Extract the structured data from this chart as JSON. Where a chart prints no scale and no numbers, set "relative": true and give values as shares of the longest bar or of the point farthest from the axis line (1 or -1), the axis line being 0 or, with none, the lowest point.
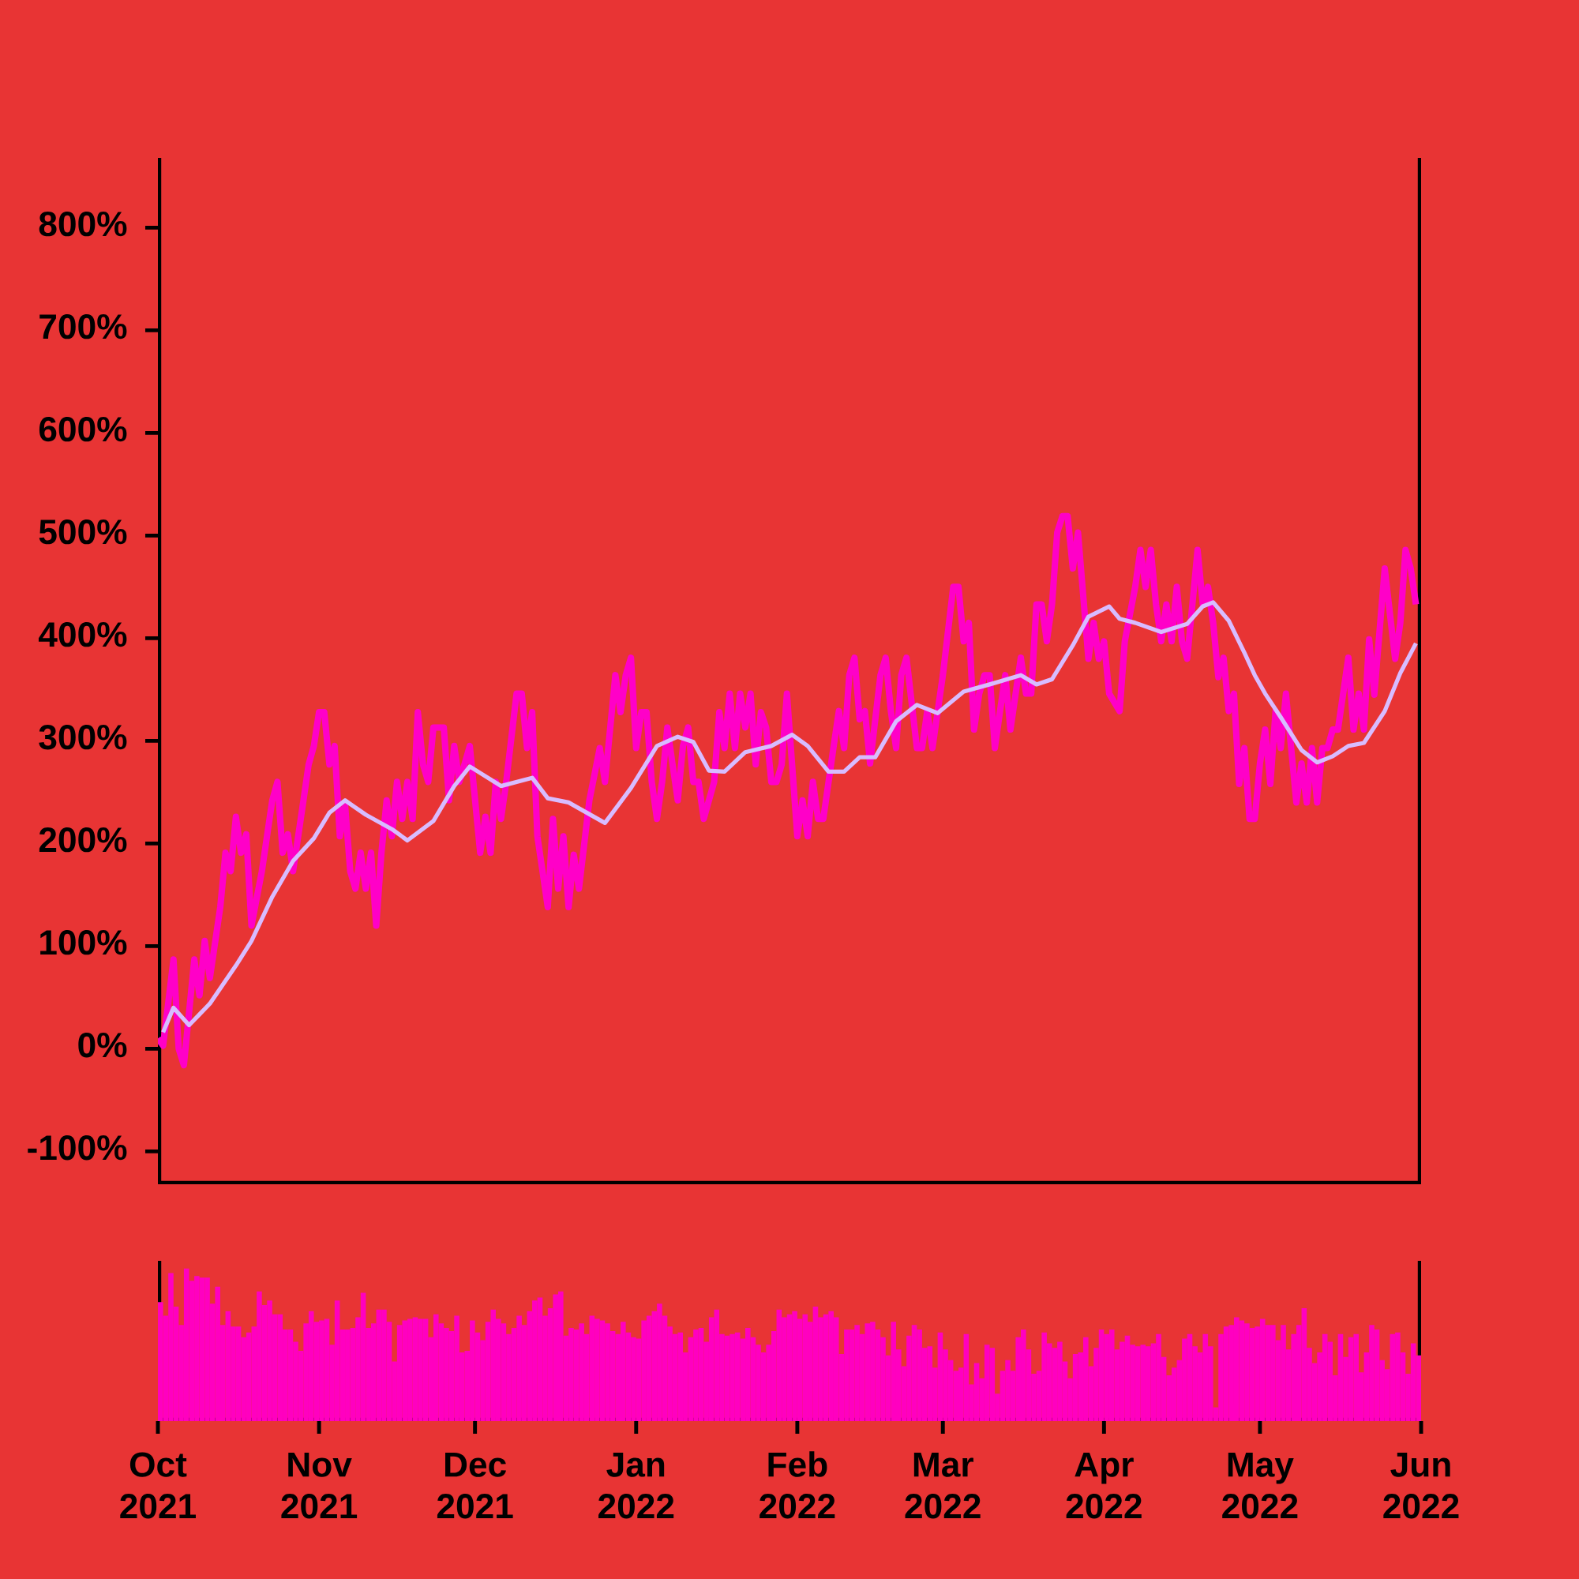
{
  "chart_data": [
    {
      "type": "line",
      "xlim": [
        "2021-10-01",
        "2022-06-01"
      ],
      "ylim": [
        -132,
        868
      ],
      "tick_labels": "y",
      "yticks": [
        {
          "value": -100,
          "label": "-100%"
        },
        {
          "value": 0,
          "label": "0%"
        },
        {
          "value": 100,
          "label": "100%"
        },
        {
          "value": 200,
          "label": "200%"
        },
        {
          "value": 300,
          "label": "300%"
        },
        {
          "value": 400,
          "label": "400%"
        },
        {
          "value": 500,
          "label": "500%"
        },
        {
          "value": 600,
          "label": "600%"
        },
        {
          "value": 700,
          "label": "700%"
        },
        {
          "value": 800,
          "label": "800%"
        }
      ],
      "series": [
        {
          "color": "#ff00c8",
          "x": [
            "2021-10-01",
            "2021-10-02",
            "2021-10-04",
            "2021-10-05",
            "2021-10-06",
            "2021-10-08",
            "2021-10-09",
            "2021-10-10",
            "2021-10-11",
            "2021-10-13",
            "2021-10-14",
            "2021-10-15",
            "2021-10-16",
            "2021-10-17",
            "2021-10-18",
            "2021-10-19",
            "2021-10-21",
            "2021-10-23",
            "2021-10-24",
            "2021-10-25",
            "2021-10-26",
            "2021-10-27",
            "2021-10-29",
            "2021-10-30",
            "2021-10-31",
            "2021-11-01",
            "2021-11-02",
            "2021-11-03",
            "2021-11-04",
            "2021-11-05",
            "2021-11-06",
            "2021-11-07",
            "2021-11-08",
            "2021-11-09",
            "2021-11-10",
            "2021-11-11",
            "2021-11-12",
            "2021-11-13",
            "2021-11-14",
            "2021-11-15",
            "2021-11-16",
            "2021-11-17",
            "2021-11-18",
            "2021-11-19",
            "2021-11-20",
            "2021-11-21",
            "2021-11-22",
            "2021-11-23",
            "2021-11-25",
            "2021-11-26",
            "2021-11-27",
            "2021-11-28",
            "2021-11-30",
            "2021-12-02",
            "2021-12-03",
            "2021-12-04",
            "2021-12-05",
            "2021-12-06",
            "2021-12-07",
            "2021-12-09",
            "2021-12-10",
            "2021-12-11",
            "2021-12-12",
            "2021-12-13",
            "2021-12-15",
            "2021-12-16",
            "2021-12-17",
            "2021-12-18",
            "2021-12-19",
            "2021-12-20",
            "2021-12-21",
            "2021-12-23",
            "2021-12-25",
            "2021-12-26",
            "2021-12-28",
            "2021-12-29",
            "2021-12-30",
            "2021-12-31",
            "2022-01-01",
            "2022-01-02",
            "2022-01-03",
            "2022-01-04",
            "2022-01-05",
            "2022-01-06",
            "2022-01-07",
            "2022-01-08",
            "2022-01-09",
            "2022-01-10",
            "2022-01-11",
            "2022-01-12",
            "2022-01-13",
            "2022-01-14",
            "2022-01-16",
            "2022-01-17",
            "2022-01-18",
            "2022-01-19",
            "2022-01-20",
            "2022-01-21",
            "2022-01-22",
            "2022-01-23",
            "2022-01-24",
            "2022-01-25",
            "2022-01-26",
            "2022-01-27",
            "2022-01-28",
            "2022-01-29",
            "2022-01-30",
            "2022-02-01",
            "2022-02-02",
            "2022-02-03",
            "2022-02-04",
            "2022-02-05",
            "2022-02-06",
            "2022-02-08",
            "2022-02-09",
            "2022-02-10",
            "2022-02-11",
            "2022-02-12",
            "2022-02-13",
            "2022-02-14",
            "2022-02-15",
            "2022-02-17",
            "2022-02-18",
            "2022-02-19",
            "2022-02-20",
            "2022-02-21",
            "2022-02-22",
            "2022-02-24",
            "2022-02-25",
            "2022-02-26",
            "2022-02-27",
            "2022-03-01",
            "2022-03-03",
            "2022-03-04",
            "2022-03-05",
            "2022-03-06",
            "2022-03-07",
            "2022-03-08",
            "2022-03-09",
            "2022-03-10",
            "2022-03-11",
            "2022-03-12",
            "2022-03-13",
            "2022-03-14",
            "2022-03-16",
            "2022-03-17",
            "2022-03-18",
            "2022-03-19",
            "2022-03-20",
            "2022-03-21",
            "2022-03-22",
            "2022-03-23",
            "2022-03-24",
            "2022-03-25",
            "2022-03-26",
            "2022-03-27",
            "2022-03-29",
            "2022-03-30",
            "2022-03-31",
            "2022-04-01",
            "2022-04-02",
            "2022-04-04",
            "2022-04-05",
            "2022-04-07",
            "2022-04-08",
            "2022-04-09",
            "2022-04-10",
            "2022-04-11",
            "2022-04-12",
            "2022-04-13",
            "2022-04-14",
            "2022-04-15",
            "2022-04-16",
            "2022-04-17",
            "2022-04-19",
            "2022-04-20",
            "2022-04-21",
            "2022-04-22",
            "2022-04-23",
            "2022-04-24",
            "2022-04-25",
            "2022-04-26",
            "2022-04-27",
            "2022-04-28",
            "2022-04-29",
            "2022-04-30",
            "2022-05-01",
            "2022-05-02",
            "2022-05-03",
            "2022-05-04",
            "2022-05-05",
            "2022-05-06",
            "2022-05-08",
            "2022-05-09",
            "2022-05-10",
            "2022-05-11",
            "2022-05-12",
            "2022-05-13",
            "2022-05-14",
            "2022-05-15",
            "2022-05-16",
            "2022-05-18",
            "2022-05-19",
            "2022-05-20",
            "2022-05-21",
            "2022-05-22",
            "2022-05-23",
            "2022-05-25",
            "2022-05-27",
            "2022-05-28",
            "2022-05-29",
            "2022-05-30",
            "2022-05-31"
          ],
          "values": [
            10,
            3,
            87,
            0,
            -16,
            87,
            52,
            105,
            69,
            138,
            191,
            173,
            226,
            191,
            209,
            120,
            173,
            242,
            260,
            191,
            209,
            173,
            242,
            277,
            295,
            328,
            328,
            277,
            295,
            207,
            238,
            173,
            156,
            191,
            156,
            191,
            120,
            191,
            242,
            207,
            260,
            224,
            260,
            224,
            328,
            277,
            260,
            313,
            313,
            242,
            295,
            260,
            295,
            191,
            226,
            191,
            260,
            224,
            260,
            346,
            346,
            293,
            328,
            207,
            138,
            224,
            156,
            207,
            138,
            189,
            156,
            242,
            293,
            260,
            364,
            328,
            364,
            381,
            293,
            328,
            328,
            260,
            224,
            260,
            313,
            277,
            242,
            295,
            313,
            260,
            260,
            224,
            260,
            328,
            293,
            346,
            293,
            346,
            313,
            346,
            277,
            328,
            313,
            260,
            260,
            277,
            346,
            207,
            242,
            207,
            260,
            224,
            224,
            295,
            329,
            293,
            364,
            381,
            321,
            329,
            278,
            364,
            381,
            329,
            293,
            364,
            381,
            293,
            293,
            329,
            293,
            364,
            450,
            450,
            397,
            415,
            311,
            346,
            364,
            364,
            293,
            329,
            364,
            311,
            381,
            346,
            346,
            433,
            433,
            397,
            433,
            503,
            519,
            519,
            468,
            503,
            380,
            415,
            380,
            397,
            346,
            329,
            397,
            450,
            486,
            450,
            486,
            433,
            397,
            433,
            397,
            450,
            397,
            380,
            486,
            433,
            450,
            415,
            362,
            381,
            329,
            346,
            258,
            293,
            224,
            224,
            278,
            311,
            258,
            329,
            293,
            346,
            240,
            278,
            240,
            293,
            240,
            293,
            293,
            311,
            311,
            381,
            311,
            346,
            311,
            399,
            345,
            468,
            380,
            415,
            486,
            468,
            433
          ]
        },
        {
          "color": "#d8bcff",
          "x": [
            "2021-10-02",
            "2021-10-04",
            "2021-10-07",
            "2021-10-11",
            "2021-10-16",
            "2021-10-19",
            "2021-10-23",
            "2021-10-27",
            "2021-10-31",
            "2021-11-03",
            "2021-11-06",
            "2021-11-10",
            "2021-11-15",
            "2021-11-18",
            "2021-11-23",
            "2021-11-27",
            "2021-11-30",
            "2021-12-06",
            "2021-12-12",
            "2021-12-15",
            "2021-12-19",
            "2021-12-26",
            "2021-12-31",
            "2022-01-05",
            "2022-01-09",
            "2022-01-12",
            "2022-01-15",
            "2022-01-18",
            "2022-01-22",
            "2022-01-27",
            "2022-01-31",
            "2022-02-03",
            "2022-02-07",
            "2022-02-10",
            "2022-02-13",
            "2022-02-16",
            "2022-02-20",
            "2022-02-24",
            "2022-02-28",
            "2022-03-05",
            "2022-03-10",
            "2022-03-16",
            "2022-03-19",
            "2022-03-22",
            "2022-03-26",
            "2022-03-29",
            "2022-04-02",
            "2022-04-04",
            "2022-04-07",
            "2022-04-12",
            "2022-04-17",
            "2022-04-20",
            "2022-04-22",
            "2022-04-25",
            "2022-04-28",
            "2022-04-30",
            "2022-05-02",
            "2022-05-05",
            "2022-05-09",
            "2022-05-12",
            "2022-05-15",
            "2022-05-18",
            "2022-05-21",
            "2022-05-25",
            "2022-05-28",
            "2022-05-31"
          ],
          "values": [
            16,
            40,
            23,
            44,
            81,
            105,
            148,
            183,
            205,
            230,
            242,
            228,
            214,
            203,
            222,
            256,
            275,
            256,
            264,
            244,
            240,
            220,
            254,
            295,
            304,
            299,
            271,
            270,
            289,
            295,
            306,
            295,
            270,
            270,
            284,
            284,
            319,
            335,
            327,
            348,
            355,
            364,
            355,
            360,
            393,
            421,
            431,
            419,
            415,
            406,
            414,
            431,
            435,
            417,
            386,
            364,
            346,
            323,
            291,
            279,
            285,
            295,
            298,
            329,
            366,
            395
          ]
        }
      ]
    },
    {
      "type": "bar",
      "relative": true,
      "color": "#ff00c0",
      "xlim": [
        "2021-10-01",
        "2022-06-01"
      ],
      "tick_labels": "x",
      "xticks": [
        {
          "value": "2021-10-01",
          "label": "Oct 2021"
        },
        {
          "value": "2021-11-01",
          "label": "Nov 2021"
        },
        {
          "value": "2021-12-01",
          "label": "Dec 2021"
        },
        {
          "value": "2022-01-01",
          "label": "Jan 2022"
        },
        {
          "value": "2022-02-01",
          "label": "Feb 2022"
        },
        {
          "value": "2022-03-01",
          "label": "Mar 2022"
        },
        {
          "value": "2022-04-01",
          "label": "Apr 2022"
        },
        {
          "value": "2022-05-01",
          "label": "May 2022"
        },
        {
          "value": "2022-06-01",
          "label": "Jun 2022"
        }
      ],
      "x": [
        "2021-10-01",
        "2021-10-02",
        "2021-10-03",
        "2021-10-04",
        "2021-10-05",
        "2021-10-06",
        "2021-10-07",
        "2021-10-08",
        "2021-10-09",
        "2021-10-10",
        "2021-10-11",
        "2021-10-12",
        "2021-10-13",
        "2021-10-14",
        "2021-10-15",
        "2021-10-16",
        "2021-10-17",
        "2021-10-18",
        "2021-10-19",
        "2021-10-20",
        "2021-10-21",
        "2021-10-22",
        "2021-10-23",
        "2021-10-24",
        "2021-10-25",
        "2021-10-26",
        "2021-10-27",
        "2021-10-28",
        "2021-10-29",
        "2021-10-30",
        "2021-10-31",
        "2021-11-01",
        "2021-11-02",
        "2021-11-03",
        "2021-11-04",
        "2021-11-05",
        "2021-11-06",
        "2021-11-07",
        "2021-11-08",
        "2021-11-09",
        "2021-11-10",
        "2021-11-11",
        "2021-11-12",
        "2021-11-13",
        "2021-11-14",
        "2021-11-15",
        "2021-11-16",
        "2021-11-17",
        "2021-11-18",
        "2021-11-19",
        "2021-11-20",
        "2021-11-21",
        "2021-11-22",
        "2021-11-23",
        "2021-11-24",
        "2021-11-25",
        "2021-11-26",
        "2021-11-27",
        "2021-11-28",
        "2021-11-29",
        "2021-11-30",
        "2021-12-01",
        "2021-12-02",
        "2021-12-03",
        "2021-12-04",
        "2021-12-05",
        "2021-12-06",
        "2021-12-07",
        "2021-12-08",
        "2021-12-09",
        "2021-12-10",
        "2021-12-11",
        "2021-12-12",
        "2021-12-13",
        "2021-12-14",
        "2021-12-15",
        "2021-12-16",
        "2021-12-17",
        "2021-12-18",
        "2021-12-19",
        "2021-12-20",
        "2021-12-21",
        "2021-12-22",
        "2021-12-23",
        "2021-12-24",
        "2021-12-25",
        "2021-12-26",
        "2021-12-27",
        "2021-12-28",
        "2021-12-29",
        "2021-12-30",
        "2021-12-31",
        "2022-01-01",
        "2022-01-02",
        "2022-01-03",
        "2022-01-04",
        "2022-01-05",
        "2022-01-06",
        "2022-01-07",
        "2022-01-08",
        "2022-01-09",
        "2022-01-10",
        "2022-01-11",
        "2022-01-12",
        "2022-01-13",
        "2022-01-14",
        "2022-01-15",
        "2022-01-16",
        "2022-01-17",
        "2022-01-18",
        "2022-01-19",
        "2022-01-20",
        "2022-01-21",
        "2022-01-22",
        "2022-01-23",
        "2022-01-24",
        "2022-01-25",
        "2022-01-26",
        "2022-01-27",
        "2022-01-28",
        "2022-01-29",
        "2022-01-30",
        "2022-01-31",
        "2022-02-01",
        "2022-02-02",
        "2022-02-03",
        "2022-02-04",
        "2022-02-05",
        "2022-02-06",
        "2022-02-07",
        "2022-02-08",
        "2022-02-09",
        "2022-02-10",
        "2022-02-11",
        "2022-02-12",
        "2022-02-13",
        "2022-02-14",
        "2022-02-15",
        "2022-02-16",
        "2022-02-17",
        "2022-02-18",
        "2022-02-19",
        "2022-02-20",
        "2022-02-21",
        "2022-02-22",
        "2022-02-23",
        "2022-02-24",
        "2022-02-25",
        "2022-02-26",
        "2022-02-27",
        "2022-02-28",
        "2022-03-01",
        "2022-03-02",
        "2022-03-03",
        "2022-03-04",
        "2022-03-05",
        "2022-03-06",
        "2022-03-07",
        "2022-03-08",
        "2022-03-09",
        "2022-03-10",
        "2022-03-11",
        "2022-03-12",
        "2022-03-13",
        "2022-03-14",
        "2022-03-15",
        "2022-03-16",
        "2022-03-17",
        "2022-03-18",
        "2022-03-19",
        "2022-03-20",
        "2022-03-21",
        "2022-03-22",
        "2022-03-23",
        "2022-03-24",
        "2022-03-25",
        "2022-03-26",
        "2022-03-27",
        "2022-03-28",
        "2022-03-29",
        "2022-03-30",
        "2022-03-31",
        "2022-04-01",
        "2022-04-02",
        "2022-04-03",
        "2022-04-04",
        "2022-04-05",
        "2022-04-06",
        "2022-04-07",
        "2022-04-08",
        "2022-04-09",
        "2022-04-10",
        "2022-04-11",
        "2022-04-12",
        "2022-04-13",
        "2022-04-14",
        "2022-04-15",
        "2022-04-16",
        "2022-04-17",
        "2022-04-18",
        "2022-04-19",
        "2022-04-20",
        "2022-04-21",
        "2022-04-22",
        "2022-04-23",
        "2022-04-24",
        "2022-04-25",
        "2022-04-26",
        "2022-04-27",
        "2022-04-28",
        "2022-04-29",
        "2022-04-30",
        "2022-05-01",
        "2022-05-02",
        "2022-05-03",
        "2022-05-04",
        "2022-05-05",
        "2022-05-06",
        "2022-05-07",
        "2022-05-08",
        "2022-05-09",
        "2022-05-10",
        "2022-05-11",
        "2022-05-12",
        "2022-05-13",
        "2022-05-14",
        "2022-05-15",
        "2022-05-16",
        "2022-05-17",
        "2022-05-18",
        "2022-05-19",
        "2022-05-20",
        "2022-05-21",
        "2022-05-22",
        "2022-05-23",
        "2022-05-24",
        "2022-05-25",
        "2022-05-26",
        "2022-05-27",
        "2022-05-28",
        "2022-05-29",
        "2022-05-30",
        "2022-05-31"
      ],
      "values": [
        0.78,
        0.69,
        0.97,
        0.75,
        0.63,
        1.0,
        0.92,
        0.95,
        0.94,
        0.94,
        0.77,
        0.88,
        0.63,
        0.72,
        0.62,
        0.62,
        0.55,
        0.58,
        0.62,
        0.85,
        0.76,
        0.79,
        0.7,
        0.7,
        0.6,
        0.6,
        0.52,
        0.46,
        0.64,
        0.72,
        0.65,
        0.66,
        0.67,
        0.5,
        0.79,
        0.6,
        0.6,
        0.61,
        0.68,
        0.84,
        0.61,
        0.64,
        0.73,
        0.73,
        0.65,
        0.39,
        0.63,
        0.66,
        0.67,
        0.68,
        0.67,
        0.67,
        0.55,
        0.7,
        0.64,
        0.61,
        0.59,
        0.69,
        0.45,
        0.46,
        0.66,
        0.58,
        0.53,
        0.65,
        0.73,
        0.67,
        0.64,
        0.57,
        0.61,
        0.69,
        0.63,
        0.72,
        0.79,
        0.81,
        0.69,
        0.74,
        0.83,
        0.85,
        0.56,
        0.61,
        0.6,
        0.64,
        0.57,
        0.69,
        0.67,
        0.66,
        0.64,
        0.59,
        0.57,
        0.65,
        0.58,
        0.55,
        0.54,
        0.66,
        0.69,
        0.72,
        0.77,
        0.69,
        0.62,
        0.57,
        0.58,
        0.45,
        0.55,
        0.6,
        0.61,
        0.52,
        0.68,
        0.73,
        0.57,
        0.56,
        0.57,
        0.58,
        0.54,
        0.61,
        0.55,
        0.5,
        0.45,
        0.5,
        0.59,
        0.73,
        0.68,
        0.7,
        0.72,
        0.67,
        0.7,
        0.65,
        0.75,
        0.68,
        0.7,
        0.72,
        0.68,
        0.44,
        0.6,
        0.6,
        0.63,
        0.57,
        0.64,
        0.65,
        0.6,
        0.55,
        0.43,
        0.65,
        0.47,
        0.36,
        0.56,
        0.63,
        0.6,
        0.48,
        0.49,
        0.35,
        0.58,
        0.47,
        0.4,
        0.33,
        0.35,
        0.57,
        0.24,
        0.38,
        0.28,
        0.5,
        0.48,
        0.18,
        0.33,
        0.4,
        0.33,
        0.55,
        0.6,
        0.47,
        0.31,
        0.33,
        0.58,
        0.51,
        0.48,
        0.52,
        0.39,
        0.28,
        0.44,
        0.45,
        0.55,
        0.36,
        0.48,
        0.6,
        0.57,
        0.6,
        0.47,
        0.52,
        0.56,
        0.5,
        0.49,
        0.5,
        0.49,
        0.51,
        0.57,
        0.42,
        0.3,
        0.35,
        0.4,
        0.54,
        0.57,
        0.49,
        0.45,
        0.57,
        0.49,
        0.09,
        0.57,
        0.62,
        0.63,
        0.68,
        0.66,
        0.64,
        0.61,
        0.62,
        0.67,
        0.63,
        0.63,
        0.53,
        0.63,
        0.47,
        0.57,
        0.63,
        0.74,
        0.48,
        0.38,
        0.45,
        0.57,
        0.52,
        0.3,
        0.57,
        0.42,
        0.55,
        0.57,
        0.32,
        0.45,
        0.63,
        0.6,
        0.4,
        0.34,
        0.57,
        0.58,
        0.45,
        0.31,
        0.51,
        0.43
      ]
    }
  ]
}
